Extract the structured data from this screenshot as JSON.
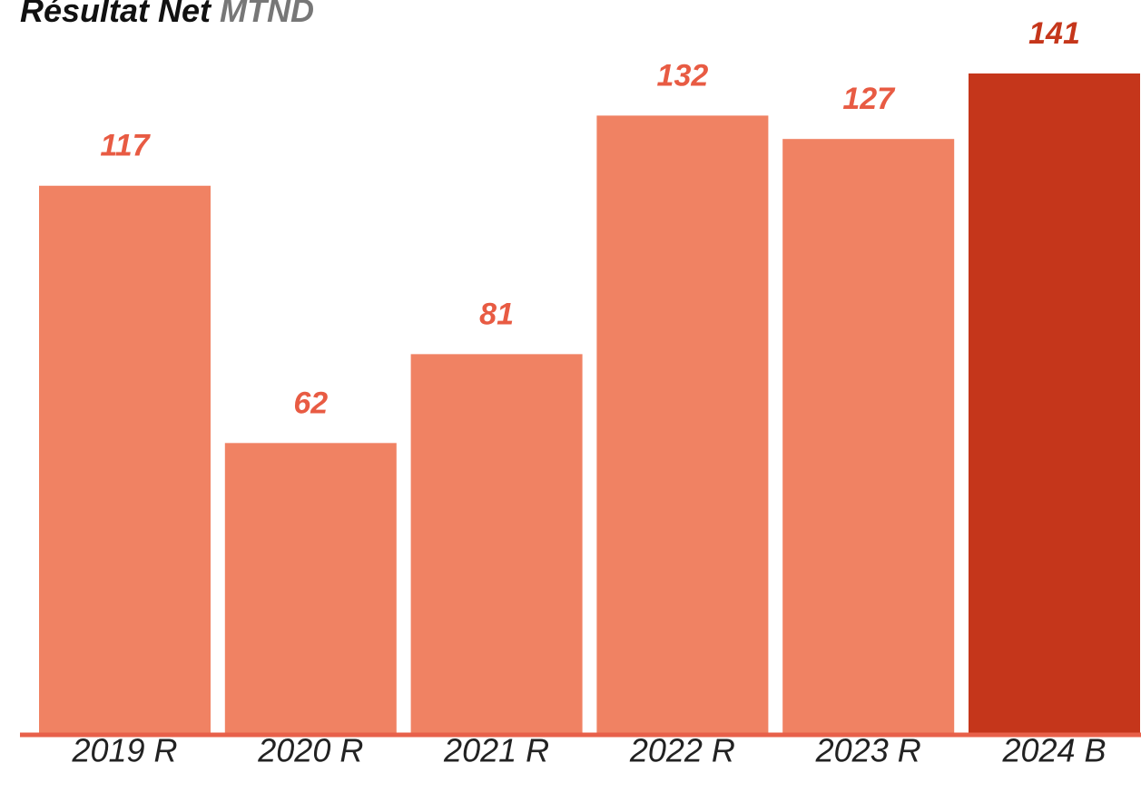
{
  "chart_data": {
    "type": "bar",
    "title": "Résultat Net",
    "subtitle": "MTND",
    "categories": [
      "2019 R",
      "2020 R",
      "2021 R",
      "2022 R",
      "2023 R",
      "2024 B"
    ],
    "values": [
      117,
      62,
      81,
      132,
      127,
      141
    ],
    "colors": [
      "#f08263",
      "#f08263",
      "#f08263",
      "#f08263",
      "#f08263",
      "#c5361b"
    ],
    "label_colors": [
      "#e85b43",
      "#e85b43",
      "#e85b43",
      "#e85b43",
      "#e85b43",
      "#c5361b"
    ],
    "baseline_color": "#e8604a"
  }
}
